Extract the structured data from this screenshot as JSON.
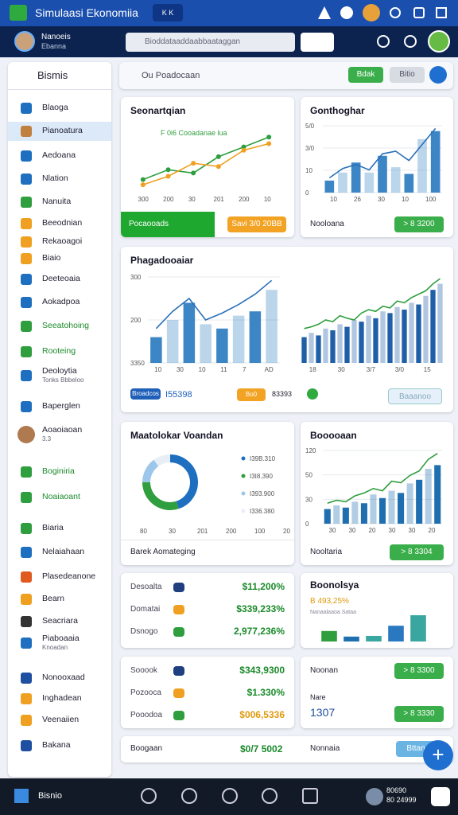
{
  "app_bar": {
    "title": "Simulaasi Ekonomiia",
    "tab": "K K"
  },
  "user": {
    "name": "Nanoeis",
    "sub": "Ebanna"
  },
  "search": {
    "placeholder": "Bioddataaddaabbaataggan"
  },
  "sidebar": {
    "title": "Bismis",
    "items": [
      {
        "label": "Blaoga"
      },
      {
        "label": "Pianoatura"
      },
      {
        "label": "Aedoana"
      },
      {
        "label": "Nlation"
      },
      {
        "label": "Nanuita"
      },
      {
        "label": "Beeodnian"
      },
      {
        "label": "Rekaoagoi"
      },
      {
        "label": "Biaio"
      },
      {
        "label": "Deeteoaia"
      },
      {
        "label": "Aokadpoa"
      },
      {
        "label": "Seeatohoing"
      },
      {
        "label": "Rooteing"
      },
      {
        "label": "Deoloytia",
        "sub": "Tonks Bbbeloo"
      },
      {
        "label": "Baperglen"
      },
      {
        "label": "Aoaoiaoan",
        "sub": "3.3"
      },
      {
        "label": "Boginiria"
      },
      {
        "label": "Noaiaoant"
      },
      {
        "label": "Biaria"
      },
      {
        "label": "Nelaiahaan"
      },
      {
        "label": "Plasedeanone"
      },
      {
        "label": "Bearn"
      },
      {
        "label": "Seacriara"
      },
      {
        "label": "Piaboaaia",
        "sub": "Knoadan"
      },
      {
        "label": "Nonooxaad"
      },
      {
        "label": "Inghadean"
      },
      {
        "label": "Veenaiien"
      },
      {
        "label": "Bakana"
      }
    ]
  },
  "toolbar": {
    "label": "Ou Poadocaan",
    "primary": "Bdak",
    "secondary": "Bitio"
  },
  "cards": [
    {
      "title": "Seonartqian",
      "legend": "F 0i6 Cooadanae lua",
      "footer": "Pocaooads",
      "button": "Savi 3/0 20BB",
      "chart": {
        "type": "line",
        "ylim": [
          0,
          100
        ],
        "xlabels": [
          "300",
          "200",
          "30",
          "201",
          "200",
          "10"
        ],
        "series": [
          {
            "color": "#2e9e3e",
            "values": [
              20,
              35,
              30,
              55,
              70,
              85
            ]
          },
          {
            "color": "#f0a020",
            "values": [
              12,
              25,
              45,
              40,
              65,
              75
            ]
          }
        ]
      }
    },
    {
      "title": "Gonthoghar",
      "footer": "Nooloana",
      "button": "> 8 3200",
      "chart": {
        "type": "bar",
        "ylim": [
          0,
          100
        ],
        "ylabels": [
          "5/0",
          "3/0",
          "10",
          "0"
        ],
        "xlabels": [
          "10",
          "26",
          "30",
          "10",
          "100"
        ],
        "values": [
          18,
          30,
          45,
          30,
          55,
          38,
          28,
          80,
          92
        ],
        "color": "#3d86c6",
        "line": [
          22,
          36,
          42,
          34,
          58,
          62,
          48,
          72,
          96
        ]
      }
    },
    {
      "title": "Phagadooaiar",
      "badge": "Broadcos",
      "stat": "I55398",
      "pill": "Bo0",
      "stat2": "83393",
      "button": "Baaanoo",
      "chart": {
        "type": "bar",
        "ylim": [
          0,
          100
        ],
        "ylabels": [
          "300",
          "200",
          "3350"
        ],
        "xlabels": [
          "10",
          "30",
          "10",
          "11",
          "7",
          "AD"
        ],
        "values": [
          30,
          50,
          70,
          45,
          40,
          55,
          60,
          85
        ],
        "color": "#3d86c6",
        "line": [
          40,
          60,
          75,
          50,
          58,
          68,
          80,
          96
        ]
      },
      "chart2": {
        "type": "bar",
        "ylim": [
          0,
          100
        ],
        "xlabels": [
          "18",
          "30",
          "3/7",
          "3/0",
          "15"
        ],
        "values": [
          30,
          35,
          32,
          40,
          38,
          45,
          42,
          50,
          48,
          55,
          52,
          60,
          58,
          65,
          62,
          70,
          68,
          78,
          85,
          92
        ],
        "color": "#1f5fa8",
        "line": [
          40,
          42,
          45,
          50,
          48,
          55,
          52,
          50,
          58,
          62,
          60,
          66,
          64,
          72,
          70,
          76,
          80,
          84,
          92,
          98
        ]
      }
    },
    {
      "title": "Maatolokar Voandan",
      "footer": "Barek Aomateging",
      "chart": {
        "type": "pie",
        "values": [
          45,
          30,
          15,
          10
        ],
        "colors": [
          "#1f6fc0",
          "#2e9e3e",
          "#9cc7ea",
          "#e8eef6"
        ],
        "labels": [
          "I39B.310",
          "I3I8.390",
          "I393.900",
          "I336.380"
        ],
        "xlabels": [
          "80",
          "30",
          "201",
          "200",
          "100",
          "20"
        ]
      }
    },
    {
      "title": "Booooaan",
      "footer": "Nooltaria",
      "button": "> 8 3304",
      "chart": {
        "type": "bar",
        "ylim": [
          0,
          100
        ],
        "ylabels": [
          "120",
          "50",
          "30",
          "0"
        ],
        "xlabels": [
          "30",
          "30",
          "20",
          "30",
          "30",
          "20"
        ],
        "values": [
          20,
          25,
          22,
          30,
          28,
          40,
          35,
          45,
          42,
          55,
          60,
          75,
          80
        ],
        "color": "#1f6fb0",
        "line": [
          28,
          32,
          30,
          38,
          42,
          48,
          45,
          58,
          56,
          66,
          72,
          88,
          96
        ]
      }
    },
    {
      "rows": [
        {
          "label": "Desoalta",
          "value": "$11,200%"
        },
        {
          "label": "Domatai",
          "value": "$339,233%"
        },
        {
          "label": "Dsnogo",
          "value": "2,977,236%"
        }
      ]
    },
    {
      "title": "Boonolsya",
      "stat": "B 493,25%",
      "note": "Nanaalaaoa Sataa",
      "chart": {
        "type": "bar",
        "ylim": [
          0,
          100
        ],
        "values": [
          30,
          14,
          16,
          45,
          75
        ],
        "colors": [
          "#2e9e3e",
          "#1f6fb0",
          "#3aa6a0",
          "#2a78c0",
          "#3aa6a0"
        ]
      }
    },
    {
      "rows": [
        {
          "label": "Sooook",
          "value": "$343,9300"
        },
        {
          "label": "Pozooca",
          "value": "$1.330%"
        },
        {
          "label": "Pooodoa",
          "value": "$006,5336"
        }
      ]
    },
    {
      "title": "Noonan",
      "sub": "Nare",
      "stat": "1307",
      "button": "> 8 3330",
      "button_top": "> 8 3300"
    },
    {
      "label": "Boogaan",
      "value": "$0/7 5002",
      "label2": "Nonnaia",
      "button": "Bttan"
    }
  ],
  "bottom": {
    "label": "Bisnio",
    "count": "80690",
    "sub": "80 24999"
  }
}
